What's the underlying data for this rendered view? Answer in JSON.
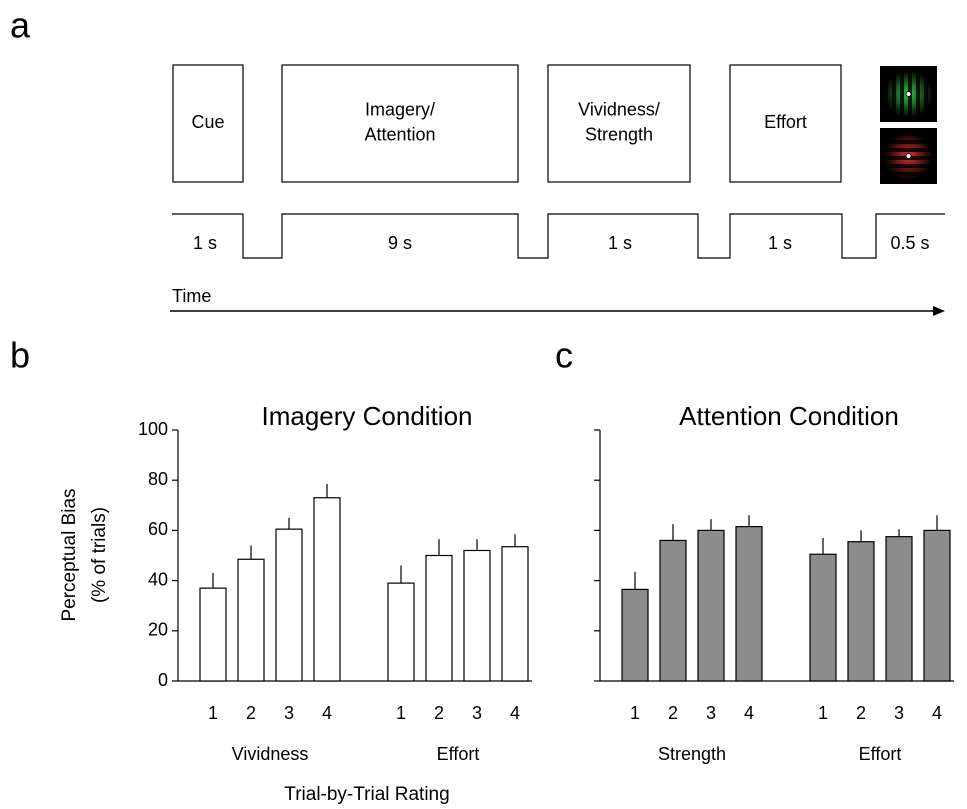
{
  "panel_labels": [
    "a",
    "b",
    "c"
  ],
  "timeline": {
    "events": [
      {
        "label": [
          "Cue"
        ],
        "duration": "1 s"
      },
      {
        "label": [
          "Imagery/",
          "Attention"
        ],
        "duration": "9 s"
      },
      {
        "label": [
          "Vividness/",
          "Strength"
        ],
        "duration": "1 s"
      },
      {
        "label": [
          "Effort"
        ],
        "duration": "1 s"
      },
      {
        "duration": "0.5 s"
      }
    ],
    "axis_label": "Time"
  },
  "chart_data": [
    {
      "type": "bar",
      "title": "Imagery Condition",
      "ylabel": [
        "Perceptual Bias",
        "(% of trials)"
      ],
      "categories": [
        "1",
        "2",
        "3",
        "4",
        "1",
        "2",
        "3",
        "4"
      ],
      "groups": [
        "Vividness",
        "Effort"
      ],
      "values": [
        37,
        48.5,
        60.5,
        73,
        39,
        50,
        52,
        53.5
      ],
      "errors": [
        6,
        5.5,
        4.5,
        5.5,
        7,
        6.5,
        4.5,
        5
      ],
      "color": "#ffffff",
      "ylim": [
        0,
        100
      ],
      "yticks": [
        0,
        20,
        40,
        60,
        80,
        100
      ],
      "show_tick_labels": true
    },
    {
      "type": "bar",
      "title": "Attention Condition",
      "categories": [
        "1",
        "2",
        "3",
        "4",
        "1",
        "2",
        "3",
        "4"
      ],
      "groups": [
        "Strength",
        "Effort"
      ],
      "values": [
        36.5,
        56,
        60,
        61.5,
        50.5,
        55.5,
        57.5,
        60
      ],
      "errors": [
        7,
        6.5,
        4.5,
        4.5,
        6.5,
        4.5,
        3,
        6
      ],
      "color": "#8c8c8c",
      "ylim": [
        0,
        100
      ],
      "yticks": [
        0,
        20,
        40,
        60,
        80,
        100
      ],
      "show_tick_labels": false
    }
  ],
  "shared_xlabel": "Trial-by-Trial Rating"
}
